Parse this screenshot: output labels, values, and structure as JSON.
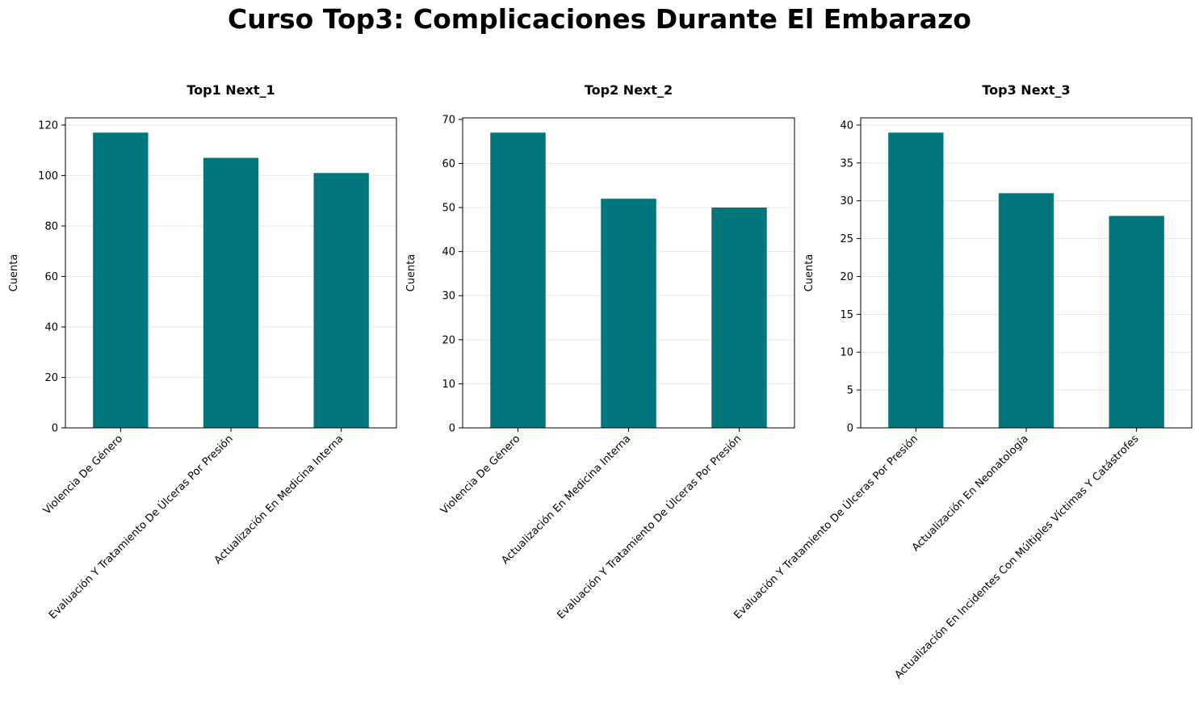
{
  "figure_title": "Curso Top3: Complicaciones Durante El Embarazo",
  "colors": {
    "bar": "#00767d",
    "grid": "#e6e6e6",
    "axis": "#000000"
  },
  "chart_data": [
    {
      "type": "bar",
      "title": "Top1 Next_1",
      "ylabel": "Cuenta",
      "categories": [
        "Violencia De Género",
        "Evaluación Y Tratamiento De Úlceras Por Presión",
        "Actualización En Medicina Interna"
      ],
      "values": [
        117,
        107,
        101
      ],
      "ylim": [
        0,
        122.85
      ],
      "yticks": [
        0,
        20,
        40,
        60,
        80,
        100,
        120
      ],
      "grid": "y"
    },
    {
      "type": "bar",
      "title": "Top2 Next_2",
      "ylabel": "Cuenta",
      "categories": [
        "Violencia De Género",
        "Actualización En Medicina Interna",
        "Evaluación Y Tratamiento De Úlceras Por Presión"
      ],
      "values": [
        67,
        52,
        50
      ],
      "ylim": [
        0,
        70.35
      ],
      "yticks": [
        0,
        10,
        20,
        30,
        40,
        50,
        60,
        70
      ],
      "grid": "y"
    },
    {
      "type": "bar",
      "title": "Top3 Next_3",
      "ylabel": "Cuenta",
      "categories": [
        "Evaluación Y Tratamiento De Úlceras Por Presión",
        "Actualización En Neonatología",
        "Actualización En Incidentes Con Múltiples Víctimas Y Catástrofes"
      ],
      "values": [
        39,
        31,
        28
      ],
      "ylim": [
        0,
        40.95
      ],
      "yticks": [
        0,
        5,
        10,
        15,
        20,
        25,
        30,
        35,
        40
      ],
      "grid": "y"
    }
  ]
}
